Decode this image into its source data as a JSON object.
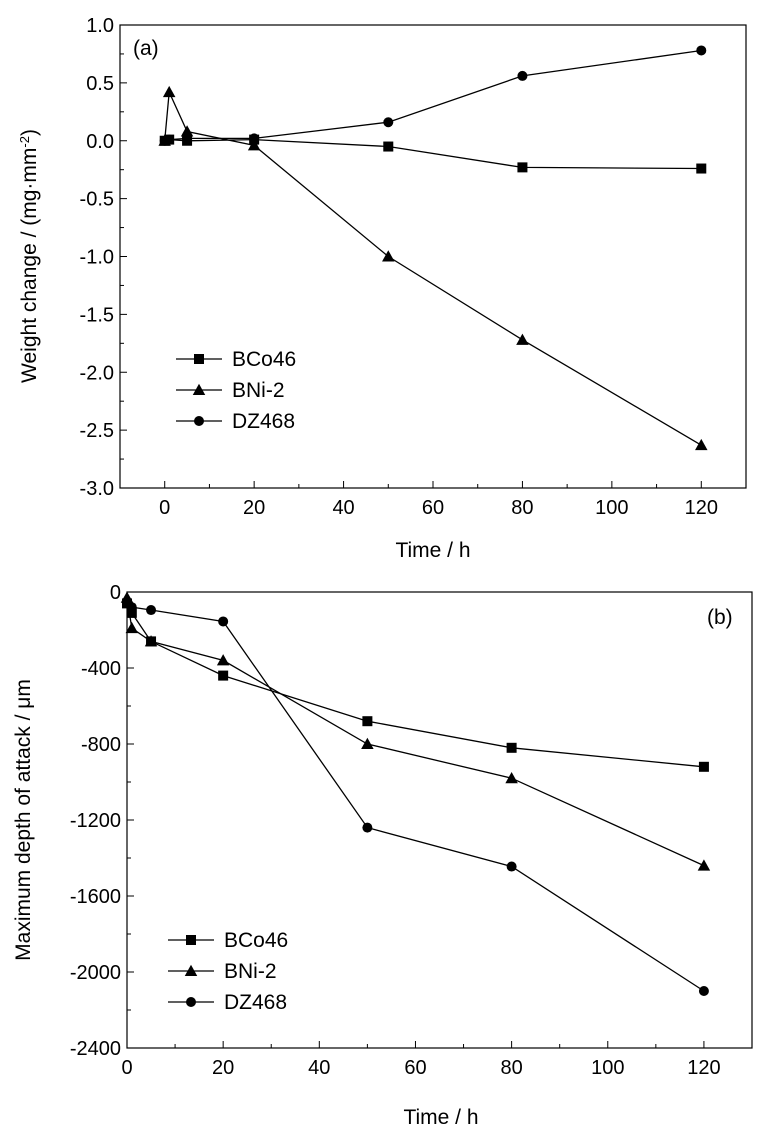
{
  "chart_data": [
    {
      "type": "line",
      "panel_label": "(a)",
      "xlabel": "Time / h",
      "ylabel": "Weight change / (mg·mm",
      "ylabel_sup": "-2",
      "ylabel_end": ")",
      "xlim": [
        -10,
        130
      ],
      "ylim": [
        -3.0,
        1.0
      ],
      "xticks": [
        0,
        20,
        40,
        60,
        80,
        100,
        120
      ],
      "xtick_labels": [
        "0",
        "20",
        "40",
        "60",
        "80",
        "100",
        "120"
      ],
      "yticks": [
        1.0,
        0.5,
        0.0,
        -0.5,
        -1.0,
        -1.5,
        -2.0,
        -2.5,
        -3.0
      ],
      "ytick_labels": [
        "1.0",
        "0.5",
        "0.0",
        "-0.5",
        "-1.0",
        "-1.5",
        "-2.0",
        "-2.5",
        "-3.0"
      ],
      "grid": false,
      "legend_position": "bottom-left",
      "series": [
        {
          "name": "BCo46",
          "marker": "square",
          "x": [
            0,
            1,
            5,
            20,
            50,
            80,
            120
          ],
          "y": [
            0.0,
            0.01,
            0.0,
            0.01,
            -0.05,
            -0.23,
            -0.24
          ]
        },
        {
          "name": "BNi-2",
          "marker": "triangle",
          "x": [
            0,
            1,
            5,
            20,
            50,
            80,
            120
          ],
          "y": [
            0.0,
            0.42,
            0.08,
            -0.04,
            -1.0,
            -1.72,
            -2.63
          ]
        },
        {
          "name": "DZ468",
          "marker": "circle",
          "x": [
            0,
            1,
            5,
            20,
            50,
            80,
            120
          ],
          "y": [
            0.0,
            0.01,
            0.02,
            0.02,
            0.16,
            0.56,
            0.78
          ]
        }
      ]
    },
    {
      "type": "line",
      "panel_label": "(b)",
      "xlabel": "Time / h",
      "ylabel": "Maximum depth of attack / μm",
      "xlim": [
        0,
        130
      ],
      "ylim": [
        -2400,
        0
      ],
      "xticks": [
        0,
        20,
        40,
        60,
        80,
        100,
        120
      ],
      "xtick_labels": [
        "0",
        "20",
        "40",
        "60",
        "80",
        "100",
        "120"
      ],
      "yticks": [
        0,
        -400,
        -800,
        -1200,
        -1600,
        -2000,
        -2400
      ],
      "ytick_labels": [
        "0",
        "-400",
        "-800",
        "-1200",
        "-1600",
        "-2000",
        "-2400"
      ],
      "grid": false,
      "legend_position": "bottom-left",
      "series": [
        {
          "name": "BCo46",
          "marker": "square",
          "x": [
            0,
            1,
            5,
            20,
            50,
            80,
            120
          ],
          "y": [
            -60,
            -110,
            -260,
            -440,
            -680,
            -820,
            -920
          ]
        },
        {
          "name": "BNi-2",
          "marker": "triangle",
          "x": [
            0,
            1,
            5,
            20,
            50,
            80,
            120
          ],
          "y": [
            -30,
            -190,
            -260,
            -360,
            -800,
            -980,
            -1440
          ]
        },
        {
          "name": "DZ468",
          "marker": "circle",
          "x": [
            0,
            1,
            5,
            20,
            50,
            80,
            120
          ],
          "y": [
            -50,
            -80,
            -95,
            -155,
            -1240,
            -1445,
            -2100
          ]
        }
      ]
    }
  ]
}
